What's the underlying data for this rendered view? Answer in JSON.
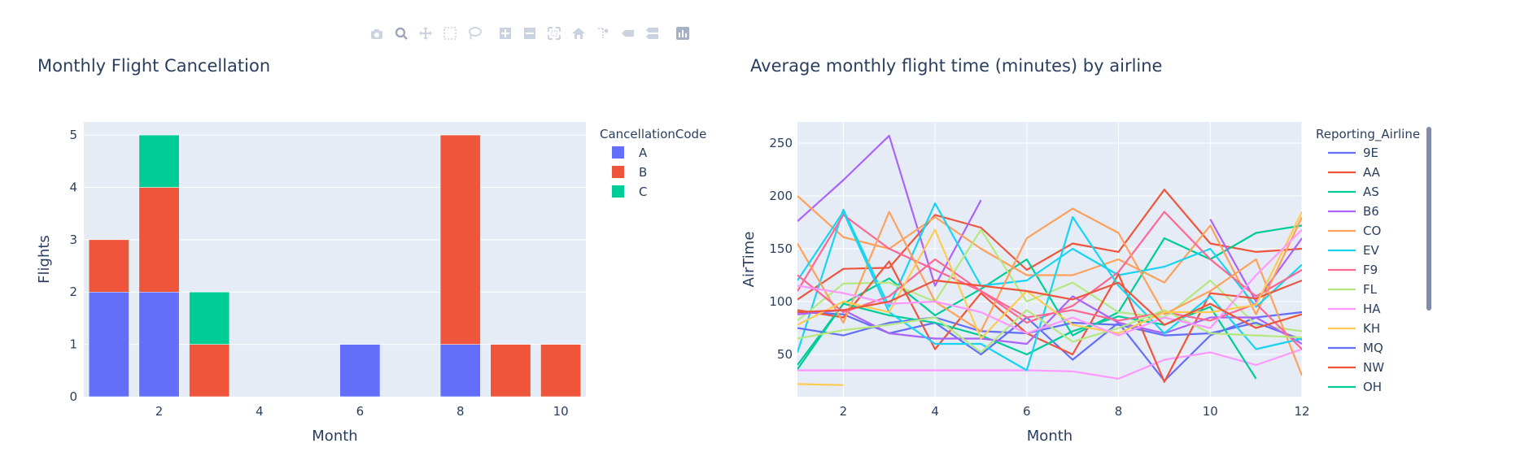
{
  "toolbar": [
    {
      "icon": "camera-icon",
      "label": "Download plot as a png"
    },
    {
      "icon": "zoom-icon",
      "label": "Zoom"
    },
    {
      "icon": "pan-icon",
      "label": "Pan"
    },
    {
      "icon": "box-select-icon",
      "label": "Box Select"
    },
    {
      "icon": "lasso-select-icon",
      "label": "Lasso Select"
    },
    {
      "icon": "zoom-in-icon",
      "label": "Zoom in"
    },
    {
      "icon": "zoom-out-icon",
      "label": "Zoom out"
    },
    {
      "icon": "autoscale-icon",
      "label": "Autoscale"
    },
    {
      "icon": "reset-axes-icon",
      "label": "Reset axes"
    },
    {
      "icon": "spike-lines-icon",
      "label": "Toggle Spike Lines"
    },
    {
      "icon": "hover-closest-icon",
      "label": "Show closest data on hover"
    },
    {
      "icon": "hover-compare-icon",
      "label": "Compare data on hover"
    },
    {
      "icon": "plotly-logo-icon",
      "label": "Produced with Plotly"
    }
  ],
  "colors": {
    "plot_bg": "#e5ecf6",
    "grid": "#ffffff",
    "text": "#2a3f5f",
    "scrollbar": "#808bab"
  },
  "chart_data": [
    {
      "type": "bar",
      "barmode": "stack",
      "title": "Monthly Flight Cancellation",
      "xlabel": "Month",
      "ylabel": "Flights",
      "xlim": [
        0.5,
        10.5
      ],
      "ylim": [
        0,
        5.25
      ],
      "xticks": [
        2,
        4,
        6,
        8,
        10
      ],
      "yticks": [
        0,
        1,
        2,
        3,
        4,
        5
      ],
      "grid": true,
      "legend_title": "CancellationCode",
      "legend_position": "right",
      "x": [
        1,
        2,
        3,
        4,
        5,
        6,
        7,
        8,
        9,
        10
      ],
      "series": [
        {
          "name": "A",
          "color": "#636efa",
          "values": [
            2,
            2,
            0,
            0,
            0,
            1,
            0,
            1,
            0,
            0
          ]
        },
        {
          "name": "B",
          "color": "#EF553B",
          "values": [
            1,
            2,
            1,
            0,
            0,
            0,
            0,
            4,
            1,
            1
          ]
        },
        {
          "name": "C",
          "color": "#00cc96",
          "values": [
            0,
            1,
            1,
            0,
            0,
            0,
            0,
            0,
            0,
            0
          ]
        }
      ]
    },
    {
      "type": "line",
      "title": "Average monthly flight time (minutes) by airline",
      "xlabel": "Month",
      "ylabel": "AirTime",
      "xlim": [
        1,
        12
      ],
      "ylim": [
        10,
        270
      ],
      "xticks": [
        2,
        4,
        6,
        8,
        10,
        12
      ],
      "yticks": [
        50,
        100,
        150,
        200,
        250
      ],
      "grid": true,
      "legend_title": "Reporting_Airline",
      "legend_position": "right",
      "x": [
        1,
        2,
        3,
        4,
        5,
        6,
        7,
        8,
        9,
        10,
        11,
        12
      ],
      "series": [
        {
          "name": "9E",
          "color": "#636efa",
          "values": [
            90,
            88,
            70,
            80,
            50,
            85,
            45,
            80,
            25,
            68,
            85,
            90
          ]
        },
        {
          "name": "AA",
          "color": "#EF553B",
          "values": [
            102,
            131,
            132,
            182,
            170,
            130,
            155,
            147,
            206,
            155,
            147,
            150
          ]
        },
        {
          "name": "AS",
          "color": "#00cc96",
          "values": [
            40,
            98,
            122,
            87,
            112,
            140,
            68,
            90,
            160,
            140,
            165,
            172
          ]
        },
        {
          "name": "B6",
          "color": "#ab63fa",
          "values": [
            176,
            215,
            257,
            115,
            196,
            null,
            null,
            null,
            null,
            178,
            100,
            160
          ]
        },
        {
          "name": "CO",
          "color": "#FFA15A",
          "values": [
            200,
            161,
            150,
            180,
            150,
            125,
            125,
            140,
            118,
            172,
            88,
            180
          ]
        },
        {
          "name": "EV",
          "color": "#19d3f3",
          "values": [
            52,
            187,
            95,
            193,
            115,
            120,
            150,
            125,
            133,
            150,
            95,
            135
          ]
        },
        {
          "name": "F9",
          "color": "#FF6692",
          "values": [
            110,
            182,
            150,
            130,
            110,
            80,
            96,
            128,
            185,
            140,
            105,
            130
          ]
        },
        {
          "name": "FL",
          "color": "#B6E880",
          "values": [
            82,
            117,
            118,
            100,
            168,
            100,
            118,
            90,
            85,
            120,
            78,
            72
          ]
        },
        {
          "name": "HA",
          "color": "#FF97FF",
          "values": [
            35,
            35,
            35,
            35,
            35,
            35,
            34,
            27,
            45,
            52,
            40,
            55
          ]
        },
        {
          "name": "KH",
          "color": "#FECB52",
          "values": [
            22,
            21,
            null,
            null,
            null,
            null,
            null,
            null,
            null,
            null,
            null,
            null
          ]
        },
        {
          "name": "MQ",
          "color": "#636efa",
          "values": [
            75,
            68,
            80,
            85,
            72,
            70,
            80,
            78,
            68,
            70,
            80,
            64
          ]
        },
        {
          "name": "NW",
          "color": "#EF553B",
          "values": [
            92,
            85,
            138,
            55,
            108,
            70,
            50,
            126,
            24,
            108,
            103,
            120
          ]
        },
        {
          "name": "OH",
          "color": "#00cc96",
          "values": [
            36,
            98,
            87,
            80,
            68,
            50,
            72,
            86,
            78,
            95,
            27,
            null
          ]
        },
        {
          "name": "",
          "color": "#ab63fa",
          "values": [
            88,
            92,
            70,
            65,
            65,
            60,
            105,
            80,
            70,
            85,
            85,
            60
          ]
        },
        {
          "name": "",
          "color": "#FFA15A",
          "values": [
            155,
            80,
            185,
            100,
            72,
            160,
            188,
            165,
            88,
            110,
            140,
            30
          ]
        },
        {
          "name": "",
          "color": "#19d3f3",
          "values": [
            120,
            185,
            90,
            60,
            60,
            35,
            180,
            115,
            70,
            105,
            55,
            65
          ]
        },
        {
          "name": "",
          "color": "#FF6692",
          "values": [
            125,
            90,
            105,
            140,
            110,
            85,
            92,
            82,
            90,
            82,
            98,
            55
          ]
        },
        {
          "name": "",
          "color": "#B6E880",
          "values": [
            65,
            73,
            78,
            85,
            52,
            92,
            62,
            75,
            92,
            70,
            68,
            66
          ]
        },
        {
          "name": "",
          "color": "#FECB52",
          "values": [
            78,
            100,
            90,
            168,
            65,
            110,
            78,
            70,
            90,
            90,
            97,
            185
          ]
        },
        {
          "name": "",
          "color": "#FF97FF",
          "values": [
            115,
            108,
            98,
            100,
            90,
            70,
            85,
            68,
            85,
            75,
            125,
            168
          ]
        },
        {
          "name": "",
          "color": "#EF553B",
          "values": [
            90,
            92,
            100,
            120,
            115,
            110,
            102,
            118,
            78,
            98,
            75,
            88
          ]
        }
      ]
    }
  ]
}
